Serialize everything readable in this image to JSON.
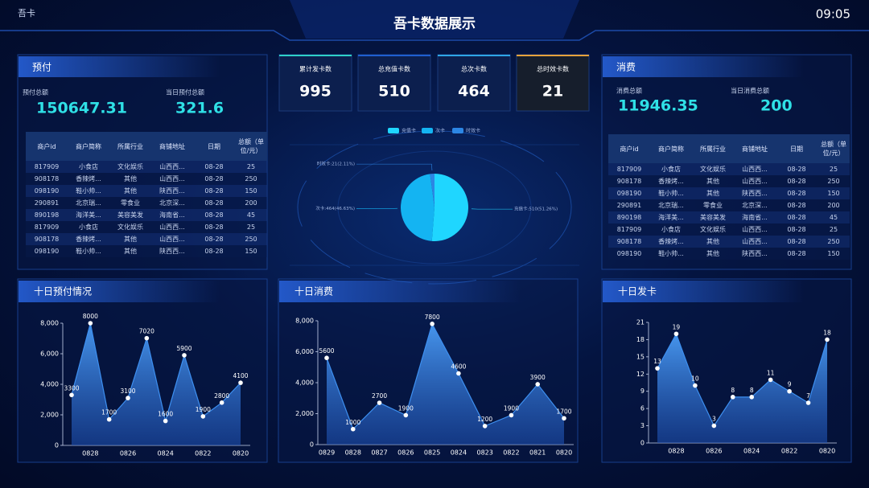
{
  "header": {
    "app_name": "吾卡",
    "title": "吾卡数据展示",
    "time": "09:05"
  },
  "prepay": {
    "title": "预付",
    "total_label": "预付总额",
    "total": 150647.31,
    "today_label": "当日预付总额",
    "today": 321.6,
    "table": {
      "columns": [
        "商户id",
        "商户简称",
        "所属行业",
        "商铺地址",
        "日期",
        "总额（单位/元）"
      ],
      "rows": [
        [
          "817909",
          "小食店",
          "文化娱乐",
          "山西西...",
          "08-28",
          25
        ],
        [
          "908178",
          "香辣烤...",
          "其他",
          "山西西...",
          "08-28",
          250
        ],
        [
          "098190",
          "鞋小帅...",
          "其他",
          "陕西西...",
          "08-28",
          150
        ],
        [
          "290891",
          "北京瑞...",
          "零食业",
          "北京深...",
          "08-28",
          200
        ],
        [
          "890198",
          "海洋美...",
          "美容美发",
          "海南省...",
          "08-28",
          45
        ],
        [
          "817909",
          "小食店",
          "文化娱乐",
          "山西西...",
          "08-28",
          25
        ],
        [
          "908178",
          "香辣烤...",
          "其他",
          "山西西...",
          "08-28",
          250
        ],
        [
          "098190",
          "鞋小帅...",
          "其他",
          "陕西西...",
          "08-28",
          150
        ]
      ]
    }
  },
  "consume": {
    "title": "消费",
    "total_label": "消费总额",
    "total": 11946.35,
    "today_label": "当日消费总额",
    "today": 200,
    "table": {
      "columns": [
        "商户id",
        "商户简称",
        "所属行业",
        "商铺地址",
        "日期",
        "总额（单位/元）"
      ],
      "rows": [
        [
          "817909",
          "小食店",
          "文化娱乐",
          "山西西...",
          "08-28",
          25
        ],
        [
          "908178",
          "香辣烤...",
          "其他",
          "山西西...",
          "08-28",
          250
        ],
        [
          "098190",
          "鞋小帅...",
          "其他",
          "陕西西...",
          "08-28",
          150
        ],
        [
          "290891",
          "北京瑞...",
          "零食业",
          "北京深...",
          "08-28",
          200
        ],
        [
          "890198",
          "海洋美...",
          "美容美发",
          "海南省...",
          "08-28",
          45
        ],
        [
          "817909",
          "小食店",
          "文化娱乐",
          "山西西...",
          "08-28",
          25
        ],
        [
          "908178",
          "香辣烤...",
          "其他",
          "山西西...",
          "08-28",
          250
        ],
        [
          "098190",
          "鞋小帅...",
          "其他",
          "陕西西...",
          "08-28",
          150
        ]
      ]
    }
  },
  "cards": [
    {
      "label": "累计发卡数",
      "value": 995
    },
    {
      "label": "总充值卡数",
      "value": 510
    },
    {
      "label": "总次卡数",
      "value": 464
    },
    {
      "label": "总时效卡数",
      "value": 21
    }
  ],
  "chart_data": [
    {
      "type": "pie",
      "categories": [
        "充值卡",
        "次卡",
        "时效卡"
      ],
      "values": [
        510,
        464,
        21
      ],
      "value_labels": [
        "充值卡:510(51.26%)",
        "次卡:464(46.63%)",
        "时效卡:21(2.11%)"
      ],
      "colors": [
        "#1fd6ff",
        "#14b4f2",
        "#2c86e4"
      ],
      "legend": "top"
    },
    {
      "type": "line",
      "title": "十日预付情况",
      "categories": [
        null,
        "0828",
        null,
        "0826",
        null,
        "0824",
        null,
        "0822",
        null,
        "0820"
      ],
      "values": [
        3300,
        8000,
        1700,
        3100,
        7020,
        1600,
        5900,
        1900,
        2800,
        4100
      ],
      "ylim": [
        0,
        8000
      ],
      "yticks": [
        0,
        {
          "value": 2000,
          "label": "2,000"
        },
        {
          "value": 4000,
          "label": "4,000"
        },
        {
          "value": 6000,
          "label": "6,000"
        },
        {
          "value": 8000,
          "label": "8,000"
        }
      ],
      "color": "#3d8ff0",
      "grid": false
    },
    {
      "type": "line",
      "title": "十日消费",
      "categories": [
        "0829",
        "0828",
        "0827",
        "0826",
        "0825",
        "0824",
        "0823",
        "0822",
        "0821",
        "0820"
      ],
      "values": [
        5600,
        1000,
        2700,
        1900,
        7800,
        4600,
        1200,
        1900,
        3900,
        1700
      ],
      "ylim": [
        0,
        8000
      ],
      "yticks": [
        0,
        {
          "value": 2000,
          "label": "2,000"
        },
        {
          "value": 4000,
          "label": "4,000"
        },
        {
          "value": 6000,
          "label": "6,000"
        },
        {
          "value": 8000,
          "label": "8,000"
        }
      ],
      "color": "#3d8ff0",
      "grid": false
    },
    {
      "type": "line",
      "title": "十日发卡",
      "categories": [
        null,
        "0828",
        null,
        "0826",
        null,
        "0824",
        null,
        "0822",
        null,
        "0820"
      ],
      "values": [
        13,
        19,
        10,
        3,
        8,
        8,
        11,
        9,
        7,
        18
      ],
      "ylim": [
        0,
        21
      ],
      "yticks": [
        0,
        3,
        6,
        9,
        12,
        15,
        18,
        21
      ],
      "color": "#3d8ff0",
      "grid": false
    }
  ]
}
